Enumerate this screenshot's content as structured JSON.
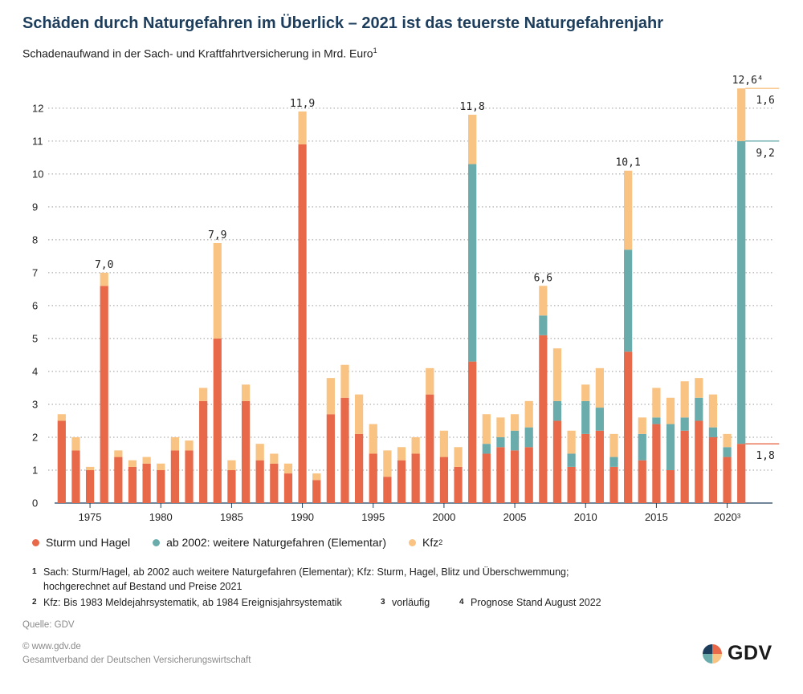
{
  "title": "Schäden durch Naturgefahren im Überlick – 2021 ist das teuerste Naturgefahrenjahr",
  "subtitle": "Schadenaufwand in der Sach- und Kraftfahrtversicherung in Mrd. Euro",
  "subtitle_sup": "1",
  "legend": [
    {
      "label": "Sturm und Hagel",
      "sup": "",
      "color": "#e8694a"
    },
    {
      "label": "ab 2002: weitere Naturgefahren (Elementar)",
      "sup": "",
      "color": "#6aacac"
    },
    {
      "label": "Kfz",
      "sup": "2",
      "color": "#f8c383"
    }
  ],
  "notes": [
    {
      "num": "1",
      "text": "Sach: Sturm/Hagel, ab 2002 auch weitere Naturgefahren (Elementar); Kfz: Sturm, Hagel, Blitz und Überschwemmung;"
    },
    {
      "num": "",
      "text": "hochgerechnet auf Bestand und Preise 2021"
    },
    {
      "num": "2",
      "text": "Kfz: Bis 1983 Meldejahrsystematik, ab 1984 Ereignisjahrsystematik"
    },
    {
      "num": "3",
      "text": "vorläufig"
    },
    {
      "num": "4",
      "text": "Prognose Stand August 2022"
    }
  ],
  "source": "Quelle: GDV",
  "footer": [
    "© www.gdv.de",
    "Gesamtverband der Deutschen Versicherungswirtschaft"
  ],
  "logo_text": "GDV",
  "chart_data": {
    "type": "bar",
    "stacked": true,
    "x": [
      1973,
      1974,
      1975,
      1976,
      1977,
      1978,
      1979,
      1980,
      1981,
      1982,
      1983,
      1984,
      1985,
      1986,
      1987,
      1988,
      1989,
      1990,
      1991,
      1992,
      1993,
      1994,
      1995,
      1996,
      1997,
      1998,
      1999,
      2000,
      2001,
      2002,
      2003,
      2004,
      2005,
      2006,
      2007,
      2008,
      2009,
      2010,
      2011,
      2012,
      2013,
      2014,
      2015,
      2016,
      2017,
      2018,
      2019,
      2020,
      2021
    ],
    "series": [
      {
        "name": "Sturm und Hagel",
        "color": "#e8694a",
        "values": [
          2.5,
          1.6,
          1.0,
          6.6,
          1.4,
          1.1,
          1.2,
          1.0,
          1.6,
          1.6,
          3.1,
          5.0,
          1.0,
          3.1,
          1.3,
          1.2,
          0.9,
          10.9,
          0.7,
          2.7,
          3.2,
          2.1,
          1.5,
          0.8,
          1.3,
          1.5,
          3.3,
          1.4,
          1.1,
          4.3,
          1.5,
          1.7,
          1.6,
          1.7,
          5.1,
          2.5,
          1.1,
          2.1,
          2.2,
          1.1,
          4.6,
          1.3,
          2.4,
          1.0,
          2.2,
          2.5,
          2.0,
          1.4,
          1.8
        ]
      },
      {
        "name": "ab 2002: weitere Naturgefahren (Elementar)",
        "color": "#6aacac",
        "values": [
          0,
          0,
          0,
          0,
          0,
          0,
          0,
          0,
          0,
          0,
          0,
          0,
          0,
          0,
          0,
          0,
          0,
          0,
          0,
          0,
          0,
          0,
          0,
          0,
          0,
          0,
          0,
          0,
          0,
          6.0,
          0.3,
          0.3,
          0.6,
          0.6,
          0.6,
          0.6,
          0.4,
          1.0,
          0.7,
          0.3,
          3.1,
          0.8,
          0.2,
          1.4,
          0.4,
          0.7,
          0.3,
          0.3,
          9.2
        ]
      },
      {
        "name": "Kfz",
        "color": "#f8c383",
        "values": [
          0.2,
          0.4,
          0.1,
          0.4,
          0.2,
          0.2,
          0.2,
          0.2,
          0.4,
          0.3,
          0.4,
          2.9,
          0.3,
          0.5,
          0.5,
          0.3,
          0.3,
          1.0,
          0.2,
          1.1,
          1.0,
          1.2,
          0.9,
          0.8,
          0.4,
          0.5,
          0.8,
          0.8,
          0.6,
          1.5,
          0.9,
          0.6,
          0.5,
          0.8,
          0.9,
          1.6,
          0.7,
          0.5,
          1.2,
          0.7,
          2.4,
          0.5,
          0.9,
          0.8,
          1.1,
          0.6,
          1.0,
          0.4,
          1.6
        ]
      }
    ],
    "total_labels": [
      {
        "year": 1976,
        "label": "7,0"
      },
      {
        "year": 1984,
        "label": "7,9"
      },
      {
        "year": 1990,
        "label": "11,9"
      },
      {
        "year": 2002,
        "label": "11,8"
      },
      {
        "year": 2007,
        "label": "6,6"
      },
      {
        "year": 2013,
        "label": "10,1"
      },
      {
        "year": 2021,
        "label": "12,6⁴"
      }
    ],
    "side_labels": [
      {
        "year": 2021,
        "series": 2,
        "label": "1,6"
      },
      {
        "year": 2021,
        "series": 1,
        "label": "9,2"
      },
      {
        "year": 2021,
        "series": 0,
        "label": "1,8"
      }
    ],
    "xticks": [
      {
        "year": 1975,
        "label": "1975"
      },
      {
        "year": 1980,
        "label": "1980"
      },
      {
        "year": 1985,
        "label": "1985"
      },
      {
        "year": 1990,
        "label": "1990"
      },
      {
        "year": 1995,
        "label": "1995"
      },
      {
        "year": 2000,
        "label": "2000"
      },
      {
        "year": 2005,
        "label": "2005"
      },
      {
        "year": 2010,
        "label": "2010"
      },
      {
        "year": 2015,
        "label": "2015"
      },
      {
        "year": 2020,
        "label": "2020³"
      }
    ],
    "yticks": [
      0,
      1,
      2,
      3,
      4,
      5,
      6,
      7,
      8,
      9,
      10,
      11,
      12
    ],
    "ylim": [
      0,
      12.8
    ],
    "xlim": [
      1972.5,
      2023.2
    ],
    "grid": true,
    "grid_style": "dotted",
    "legend_position": "bottom-left"
  }
}
